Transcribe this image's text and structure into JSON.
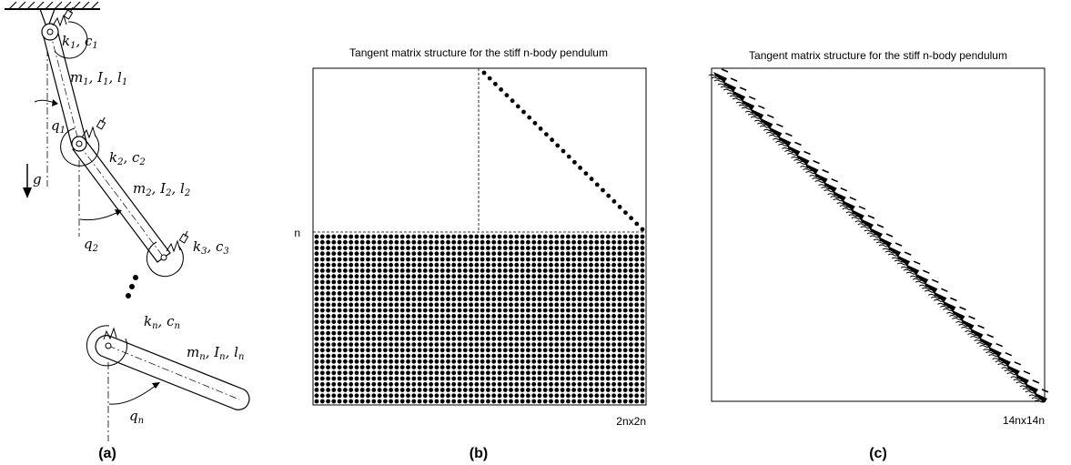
{
  "captions": {
    "a": "(a)",
    "b": "(b)",
    "c": "(c)"
  },
  "pendulum": {
    "links": [
      {
        "k": "k",
        "c": "c",
        "sub": "1",
        "m": "m",
        "I": "I",
        "l": "l",
        "q": "q"
      },
      {
        "k": "k",
        "c": "c",
        "sub": "2",
        "m": "m",
        "I": "I",
        "l": "l",
        "q": "q"
      },
      {
        "k": "k",
        "c": "c",
        "sub": "3"
      },
      {
        "k": "k",
        "c": "c",
        "sub": "n",
        "m": "m",
        "I": "I",
        "l": "l",
        "q": "q"
      }
    ],
    "gravity": "g",
    "separator": ", "
  },
  "matrix_b": {
    "title": "Tangent matrix structure for the stiff n-body pendulum",
    "row_label": "n",
    "size_label": "2nx2n"
  },
  "matrix_c": {
    "title": "Tangent matrix structure for the stiff n-body pendulum",
    "size_label": "14nx14n"
  }
}
